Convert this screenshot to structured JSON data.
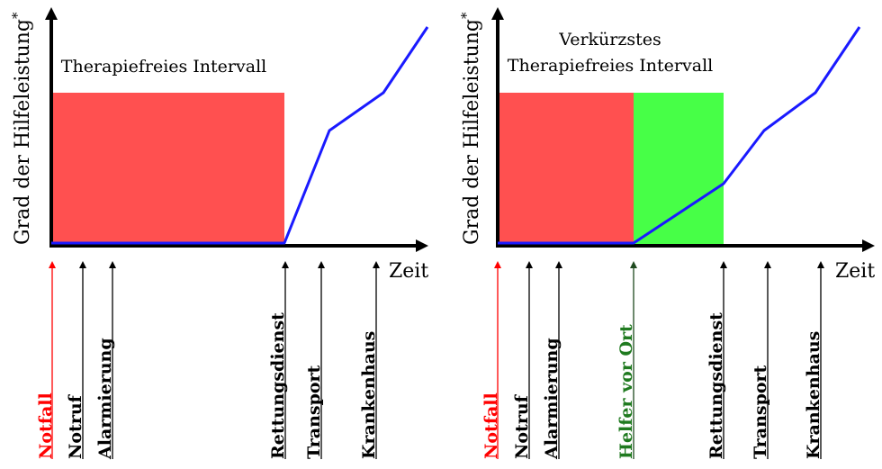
{
  "colors": {
    "axis": "#000000",
    "curve": "#1a1aff",
    "red_zone": "#ff5050",
    "green_zone": "#47ff47",
    "notfall": "#ff0000",
    "helfer": "#1f7a1f",
    "default_event": "#000000"
  },
  "panels": [
    {
      "ylabel": "Grad der Hilfeleistung",
      "ylabel_mark": "*",
      "xlabel": "Zeit",
      "interval_lines": [
        "Therapiefreies Intervall"
      ],
      "events": [
        {
          "label": "Notfall",
          "color": "notfall"
        },
        {
          "label": "Notruf",
          "color": "default_event"
        },
        {
          "label": "Alarmierung",
          "color": "default_event"
        },
        {
          "label": "Rettungsdienst",
          "color": "default_event"
        },
        {
          "label": "Transport",
          "color": "default_event"
        },
        {
          "label": "Krankenhaus",
          "color": "default_event"
        }
      ]
    },
    {
      "ylabel": "Grad der Hilfeleistung",
      "ylabel_mark": "*",
      "xlabel": "Zeit",
      "interval_lines": [
        "Verkürzstes",
        "Therapiefreies Intervall"
      ],
      "events": [
        {
          "label": "Notfall",
          "color": "notfall"
        },
        {
          "label": "Notruf",
          "color": "default_event"
        },
        {
          "label": "Alarmierung",
          "color": "default_event"
        },
        {
          "label": "Helfer vor Ort",
          "color": "helfer"
        },
        {
          "label": "Rettungsdienst",
          "color": "default_event"
        },
        {
          "label": "Transport",
          "color": "default_event"
        },
        {
          "label": "Krankenhaus",
          "color": "default_event"
        }
      ]
    }
  ]
}
